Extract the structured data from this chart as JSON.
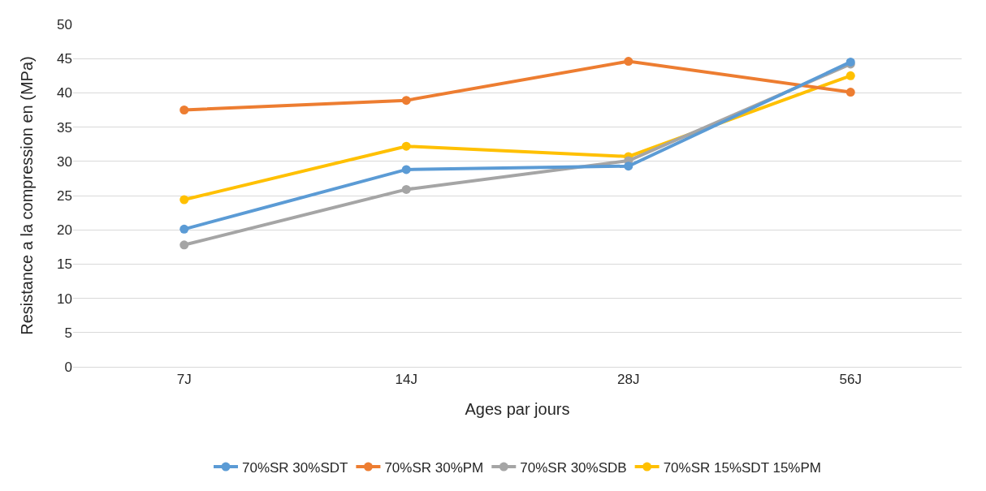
{
  "chart_data": {
    "type": "line",
    "xlabel": "Ages par jours",
    "ylabel": "Resistance a la compression en (MPa)",
    "categories": [
      "7J",
      "14J",
      "28J",
      "56J"
    ],
    "series": [
      {
        "name": "70%SR 30%SDT",
        "color": "#5b9bd5",
        "values": [
          20.1,
          28.8,
          29.3,
          44.5
        ]
      },
      {
        "name": "70%SR 30%PM",
        "color": "#ed7d31",
        "values": [
          37.5,
          38.9,
          44.6,
          40.1
        ]
      },
      {
        "name": "70%SR 30%SDB",
        "color": "#a5a5a5",
        "values": [
          17.8,
          25.9,
          30.1,
          44.2
        ]
      },
      {
        "name": "70%SR 15%SDT 15%PM",
        "color": "#ffc000",
        "values": [
          24.4,
          32.2,
          30.7,
          42.5
        ]
      }
    ],
    "ylim": [
      0,
      50
    ],
    "yticks": [
      0,
      5,
      10,
      15,
      20,
      25,
      30,
      35,
      40,
      45,
      50
    ],
    "grid": "y",
    "legend": "bottom",
    "marker": "circle",
    "line_style": "solid"
  }
}
